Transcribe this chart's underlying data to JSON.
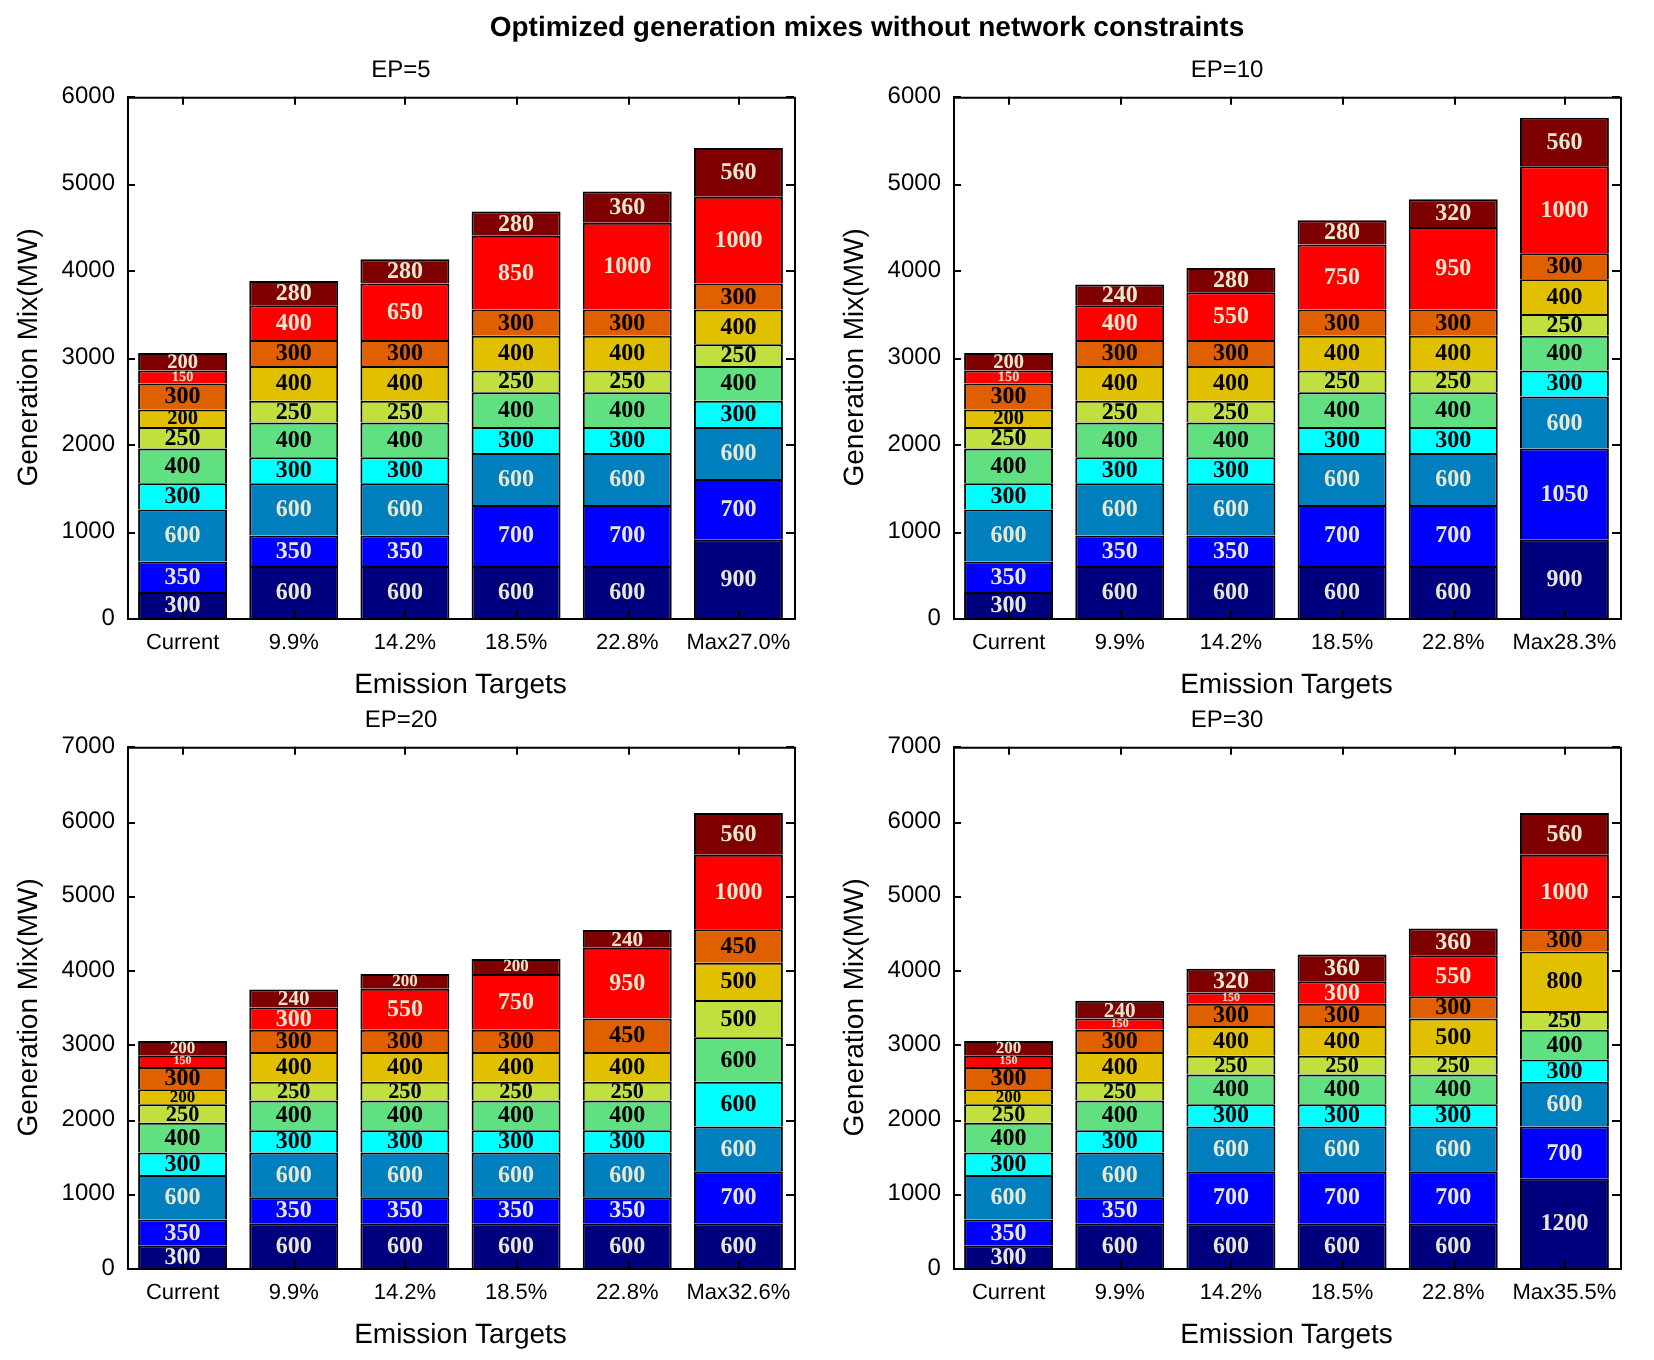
{
  "chart_data": [
    {
      "type": "bar",
      "title": "EP=5",
      "annotations": [
        "Optimized generation mixes without network constraints"
      ],
      "xlabel": "Emission Targets",
      "ylabel": "Generation Mix(MW)",
      "categories": [
        "Current",
        "9.9%",
        "14.2%",
        "18.5%",
        "22.8%",
        "Max27.0%"
      ],
      "stacked": true,
      "data_labels": true,
      "grid": false,
      "legend": false,
      "ylim": [
        0,
        6000
      ],
      "yticks": [
        0,
        1000,
        2000,
        3000,
        4000,
        5000,
        6000
      ],
      "series": [
        {
          "color": "#00007f",
          "values": [
            300,
            600,
            600,
            600,
            600,
            900
          ]
        },
        {
          "color": "#0000ff",
          "values": [
            350,
            350,
            350,
            700,
            700,
            700
          ]
        },
        {
          "color": "#007fbf",
          "values": [
            600,
            600,
            600,
            600,
            600,
            600
          ]
        },
        {
          "color": "#00ffff",
          "values": [
            300,
            300,
            300,
            300,
            300,
            300
          ]
        },
        {
          "color": "#60e080",
          "values": [
            400,
            400,
            400,
            400,
            400,
            400
          ]
        },
        {
          "color": "#c0e040",
          "values": [
            250,
            250,
            250,
            250,
            250,
            250
          ]
        },
        {
          "color": "#e0c000",
          "values": [
            200,
            400,
            400,
            400,
            400,
            400
          ]
        },
        {
          "color": "#e06000",
          "values": [
            300,
            300,
            300,
            300,
            300,
            300
          ]
        },
        {
          "color": "#ff0000",
          "values": [
            150,
            400,
            650,
            850,
            1000,
            1000
          ]
        },
        {
          "color": "#7f0000",
          "values": [
            200,
            280,
            280,
            280,
            360,
            560
          ]
        }
      ]
    },
    {
      "type": "bar",
      "title": "EP=10",
      "xlabel": "Emission Targets",
      "ylabel": "Generation Mix(MW)",
      "categories": [
        "Current",
        "9.9%",
        "14.2%",
        "18.5%",
        "22.8%",
        "Max28.3%"
      ],
      "stacked": true,
      "data_labels": true,
      "grid": false,
      "legend": false,
      "ylim": [
        0,
        6000
      ],
      "yticks": [
        0,
        1000,
        2000,
        3000,
        4000,
        5000,
        6000
      ],
      "series": [
        {
          "color": "#00007f",
          "values": [
            300,
            600,
            600,
            600,
            600,
            900
          ]
        },
        {
          "color": "#0000ff",
          "values": [
            350,
            350,
            350,
            700,
            700,
            1050
          ]
        },
        {
          "color": "#007fbf",
          "values": [
            600,
            600,
            600,
            600,
            600,
            600
          ]
        },
        {
          "color": "#00ffff",
          "values": [
            300,
            300,
            300,
            300,
            300,
            300
          ]
        },
        {
          "color": "#60e080",
          "values": [
            400,
            400,
            400,
            400,
            400,
            400
          ]
        },
        {
          "color": "#c0e040",
          "values": [
            250,
            250,
            250,
            250,
            250,
            250
          ]
        },
        {
          "color": "#e0c000",
          "values": [
            200,
            400,
            400,
            400,
            400,
            400
          ]
        },
        {
          "color": "#e06000",
          "values": [
            300,
            300,
            300,
            300,
            300,
            300
          ]
        },
        {
          "color": "#ff0000",
          "values": [
            150,
            400,
            550,
            750,
            950,
            1000
          ]
        },
        {
          "color": "#7f0000",
          "values": [
            200,
            240,
            280,
            280,
            320,
            560
          ]
        }
      ]
    },
    {
      "type": "bar",
      "title": "EP=20",
      "xlabel": "Emission Targets",
      "ylabel": "Generation Mix(MW)",
      "categories": [
        "Current",
        "9.9%",
        "14.2%",
        "18.5%",
        "22.8%",
        "Max32.6%"
      ],
      "stacked": true,
      "data_labels": true,
      "grid": false,
      "legend": false,
      "ylim": [
        0,
        7000
      ],
      "yticks": [
        0,
        1000,
        2000,
        3000,
        4000,
        5000,
        6000,
        7000
      ],
      "series": [
        {
          "color": "#00007f",
          "values": [
            300,
            600,
            600,
            600,
            600,
            600
          ]
        },
        {
          "color": "#0000ff",
          "values": [
            350,
            350,
            350,
            350,
            350,
            700
          ]
        },
        {
          "color": "#007fbf",
          "values": [
            600,
            600,
            600,
            600,
            600,
            600
          ]
        },
        {
          "color": "#00ffff",
          "values": [
            300,
            300,
            300,
            300,
            300,
            600
          ]
        },
        {
          "color": "#60e080",
          "values": [
            400,
            400,
            400,
            400,
            400,
            600
          ]
        },
        {
          "color": "#c0e040",
          "values": [
            250,
            250,
            250,
            250,
            250,
            500
          ]
        },
        {
          "color": "#e0c000",
          "values": [
            200,
            400,
            400,
            400,
            400,
            500
          ]
        },
        {
          "color": "#e06000",
          "values": [
            300,
            300,
            300,
            300,
            450,
            450
          ]
        },
        {
          "color": "#ff0000",
          "values": [
            150,
            300,
            550,
            750,
            950,
            1000
          ]
        },
        {
          "color": "#7f0000",
          "values": [
            200,
            240,
            200,
            200,
            240,
            560
          ]
        }
      ]
    },
    {
      "type": "bar",
      "title": "EP=30",
      "xlabel": "Emission Targets",
      "ylabel": "Generation Mix(MW)",
      "categories": [
        "Current",
        "9.9%",
        "14.2%",
        "18.5%",
        "22.8%",
        "Max35.5%"
      ],
      "stacked": true,
      "data_labels": true,
      "grid": false,
      "legend": false,
      "ylim": [
        0,
        7000
      ],
      "yticks": [
        0,
        1000,
        2000,
        3000,
        4000,
        5000,
        6000,
        7000
      ],
      "series": [
        {
          "color": "#00007f",
          "values": [
            300,
            600,
            600,
            600,
            600,
            1200
          ]
        },
        {
          "color": "#0000ff",
          "values": [
            350,
            350,
            700,
            700,
            700,
            700
          ]
        },
        {
          "color": "#007fbf",
          "values": [
            600,
            600,
            600,
            600,
            600,
            600
          ]
        },
        {
          "color": "#00ffff",
          "values": [
            300,
            300,
            300,
            300,
            300,
            300
          ]
        },
        {
          "color": "#60e080",
          "values": [
            400,
            400,
            400,
            400,
            400,
            400
          ]
        },
        {
          "color": "#c0e040",
          "values": [
            250,
            250,
            250,
            250,
            250,
            250
          ]
        },
        {
          "color": "#e0c000",
          "values": [
            200,
            400,
            400,
            400,
            500,
            800
          ]
        },
        {
          "color": "#e06000",
          "values": [
            300,
            300,
            300,
            300,
            300,
            300
          ]
        },
        {
          "color": "#ff0000",
          "values": [
            150,
            150,
            150,
            300,
            550,
            1000
          ]
        },
        {
          "color": "#7f0000",
          "values": [
            200,
            240,
            320,
            360,
            360,
            560
          ]
        }
      ]
    }
  ]
}
